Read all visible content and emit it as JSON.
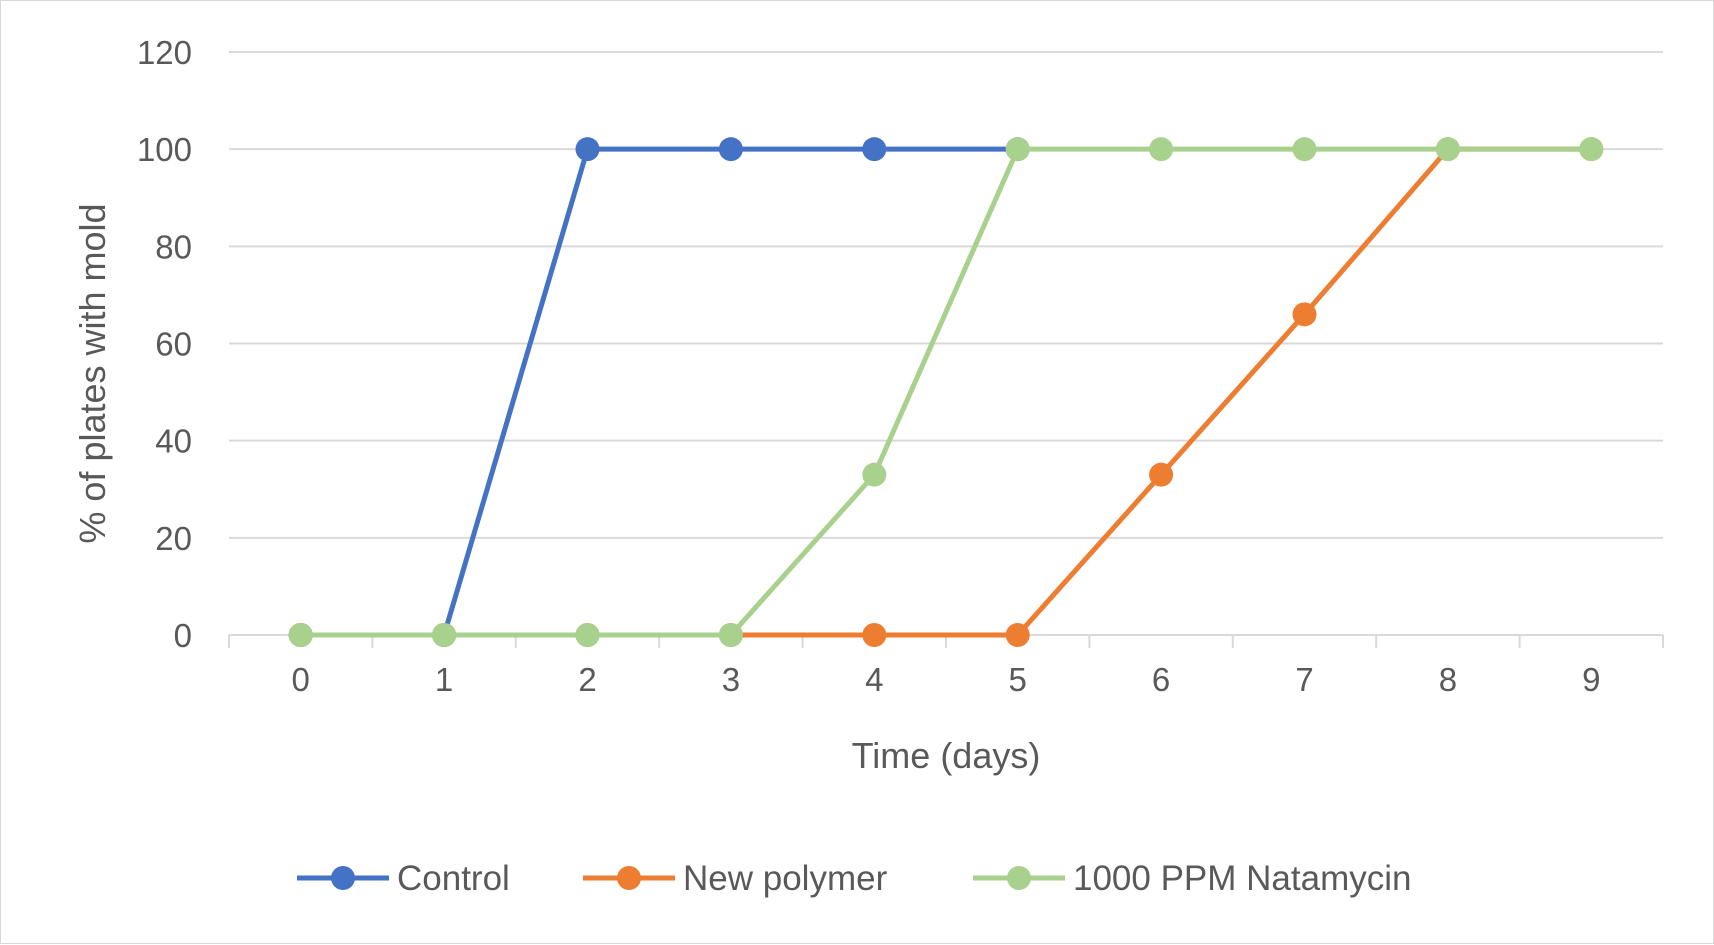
{
  "chart_data": {
    "type": "line",
    "title": "",
    "xlabel": "Time (days)",
    "ylabel": "% of plates with mold",
    "x": [
      0,
      1,
      2,
      3,
      4,
      5,
      6,
      7,
      8,
      9
    ],
    "x_tick_labels": [
      "0",
      "1",
      "2",
      "3",
      "4",
      "5",
      "6",
      "7",
      "8",
      "9"
    ],
    "ylim": [
      0,
      120
    ],
    "y_ticks": [
      0,
      20,
      40,
      60,
      80,
      100,
      120
    ],
    "y_tick_labels": [
      "0",
      "20",
      "40",
      "60",
      "80",
      "100",
      "120"
    ],
    "grid": true,
    "legend_position": "bottom",
    "series": [
      {
        "name": "Control",
        "color": "#4472C4",
        "x": [
          0,
          1,
          2,
          3,
          4,
          5
        ],
        "values": [
          0,
          0,
          100,
          100,
          100,
          100
        ]
      },
      {
        "name": "New polymer",
        "color": "#ED7D31",
        "x": [
          0,
          1,
          2,
          3,
          4,
          5,
          6,
          7,
          8,
          9
        ],
        "values": [
          0,
          0,
          0,
          0,
          0,
          0,
          33,
          66,
          100,
          100
        ]
      },
      {
        "name": "1000 PPM Natamycin",
        "color": "#A9D18E",
        "x": [
          0,
          1,
          2,
          3,
          4,
          5,
          6,
          7,
          8,
          9
        ],
        "values": [
          0,
          0,
          0,
          0,
          33,
          100,
          100,
          100,
          100,
          100
        ]
      }
    ]
  }
}
